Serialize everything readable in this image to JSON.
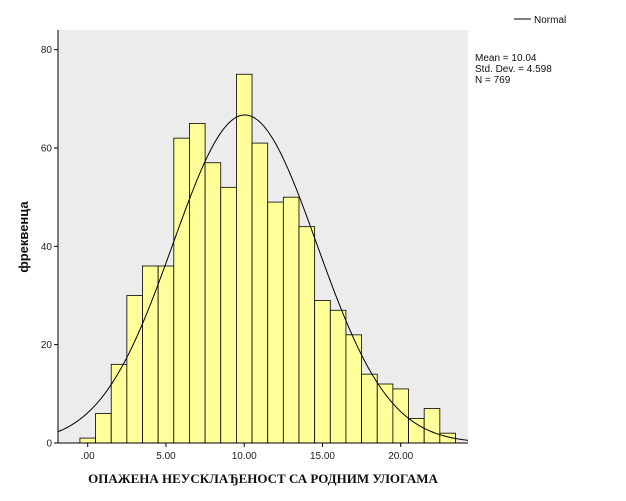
{
  "chart_data": {
    "type": "bar",
    "subtype": "histogram",
    "xlabel": "ОПАЖЕНА НЕУСКЛАЂЕНОСТ СА РОДНИМ УЛОГАМА",
    "ylabel": "фреквенца",
    "xlim": [
      -1.9,
      24.3
    ],
    "ylim": [
      0,
      84
    ],
    "x_ticks": [
      ".00",
      "5.00",
      "10.00",
      "15.00",
      "20.00"
    ],
    "y_ticks": [
      "0",
      "20",
      "40",
      "60",
      "80"
    ],
    "bin_width": 1,
    "bins": [
      {
        "x0": -0.5,
        "x1": 0.5,
        "count": 1
      },
      {
        "x0": 0.5,
        "x1": 1.5,
        "count": 6
      },
      {
        "x0": 1.5,
        "x1": 2.5,
        "count": 16
      },
      {
        "x0": 2.5,
        "x1": 3.5,
        "count": 30
      },
      {
        "x0": 3.5,
        "x1": 4.5,
        "count": 36
      },
      {
        "x0": 4.5,
        "x1": 5.5,
        "count": 36
      },
      {
        "x0": 5.5,
        "x1": 6.5,
        "count": 62
      },
      {
        "x0": 6.5,
        "x1": 7.5,
        "count": 65
      },
      {
        "x0": 7.5,
        "x1": 8.5,
        "count": 57
      },
      {
        "x0": 8.5,
        "x1": 9.5,
        "count": 52
      },
      {
        "x0": 9.5,
        "x1": 10.5,
        "count": 75
      },
      {
        "x0": 10.5,
        "x1": 11.5,
        "count": 61
      },
      {
        "x0": 11.5,
        "x1": 12.5,
        "count": 49
      },
      {
        "x0": 12.5,
        "x1": 13.5,
        "count": 50
      },
      {
        "x0": 13.5,
        "x1": 14.5,
        "count": 44
      },
      {
        "x0": 14.5,
        "x1": 15.5,
        "count": 29
      },
      {
        "x0": 15.5,
        "x1": 16.5,
        "count": 27
      },
      {
        "x0": 16.5,
        "x1": 17.5,
        "count": 22
      },
      {
        "x0": 17.5,
        "x1": 18.5,
        "count": 14
      },
      {
        "x0": 18.5,
        "x1": 19.5,
        "count": 12
      },
      {
        "x0": 19.5,
        "x1": 20.5,
        "count": 11
      },
      {
        "x0": 20.5,
        "x1": 21.5,
        "count": 5
      },
      {
        "x0": 21.5,
        "x1": 22.5,
        "count": 7
      },
      {
        "x0": 22.5,
        "x1": 23.5,
        "count": 2
      }
    ],
    "normal_curve": {
      "mean": 10.04,
      "std_dev": 4.598,
      "n": 769
    },
    "legend": {
      "entries": [
        "Normal"
      ],
      "placement": "top-right"
    },
    "stats": {
      "mean_label": "Mean = 10.04",
      "std_label": "Std. Dev. = 4.598",
      "n_label": "N = 769"
    },
    "colors": {
      "bar_fill": "#ffff99",
      "bar_stroke": "#000000",
      "plot_background": "#ececec",
      "curve": "#000000"
    },
    "grid": false
  }
}
